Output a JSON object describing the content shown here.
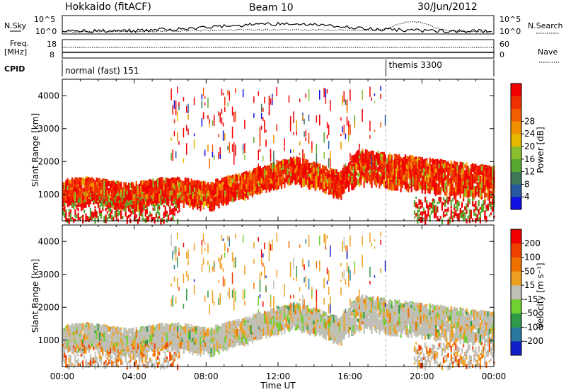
{
  "header": {
    "station": "Hokkaido (fitACF)",
    "beam": "Beam 10",
    "date": "30/Jun/2012"
  },
  "status_strip": {
    "nsky_label": "N.Sky",
    "nsky_ticks": [
      "10^5",
      "10^0"
    ],
    "nsearch_label": "N.Search",
    "nsearch_ticks": [
      "10^5",
      "10^0"
    ],
    "freq_label": "Freq.",
    "freq_unit": "[MHz]",
    "freq_ticks": [
      "18",
      "8"
    ],
    "nave_label": "Nave",
    "nave_ticks": [
      "60",
      "0"
    ],
    "cpid_label": "CPID",
    "cpid_segments": [
      {
        "start_hour": 0,
        "label": "normal (fast) 151"
      },
      {
        "start_hour": 18,
        "label": "themis 3300"
      }
    ]
  },
  "chart_data": [
    {
      "type": "heatmap",
      "title": "",
      "ylabel": "Slant Range [km]",
      "xlabel": "",
      "yticks": [
        "1000",
        "2000",
        "3000",
        "4000"
      ],
      "ylim": [
        200,
        4500
      ],
      "xlim_hours": [
        0,
        24
      ],
      "colorbar_label": "Power [dB]",
      "colorbar_ticks": [
        "4",
        "8",
        "12",
        "16",
        "20",
        "24",
        "28"
      ],
      "colorbar_colors": [
        "#1010e0",
        "#2858a0",
        "#3c7858",
        "#58a830",
        "#88c030",
        "#e8b800",
        "#f09000",
        "#f06000",
        "#f03000",
        "#f00000"
      ],
      "dominant_colors": [
        "#ff2a00",
        "#e84000",
        "#5ab030"
      ],
      "features": [
        {
          "from_hour": 0,
          "to_hour": 9,
          "range_km": [
            900,
            1500
          ],
          "power_db": 28
        },
        {
          "from_hour": 9,
          "to_hour": 13,
          "range_km": [
            1200,
            2000
          ],
          "power_db": 28
        },
        {
          "from_hour": 16,
          "to_hour": 24,
          "range_km": [
            1100,
            2400
          ],
          "power_db": 28
        }
      ]
    },
    {
      "type": "heatmap",
      "title": "",
      "ylabel": "Slant Range [km]",
      "xlabel": "Time UT",
      "xticks": [
        "00:00",
        "04:00",
        "08:00",
        "12:00",
        "16:00",
        "20:00",
        "00:00"
      ],
      "yticks": [
        "1000",
        "2000",
        "3000",
        "4000"
      ],
      "ylim": [
        200,
        4500
      ],
      "xlim_hours": [
        0,
        24
      ],
      "colorbar_label": "Velocity [m s⁻¹]",
      "colorbar_ticks": [
        "200",
        "100",
        "50",
        "15",
        "-15",
        "-50",
        "-100",
        "-200"
      ],
      "colorbar_colors": [
        "#1020c8",
        "#2a78a0",
        "#2f9a48",
        "#70d030",
        "#c0c0b8",
        "#f0a020",
        "#f07000",
        "#f04000",
        "#f00000"
      ],
      "dominant_colors": [
        "#c8c6bc",
        "#f0a020",
        "#70d030"
      ],
      "features": [
        {
          "from_hour": 0,
          "to_hour": 9,
          "range_km": [
            500,
            1500
          ],
          "velocity": 0
        },
        {
          "from_hour": 9,
          "to_hour": 24,
          "range_km": [
            1000,
            2400
          ],
          "velocity": 0
        }
      ]
    }
  ]
}
